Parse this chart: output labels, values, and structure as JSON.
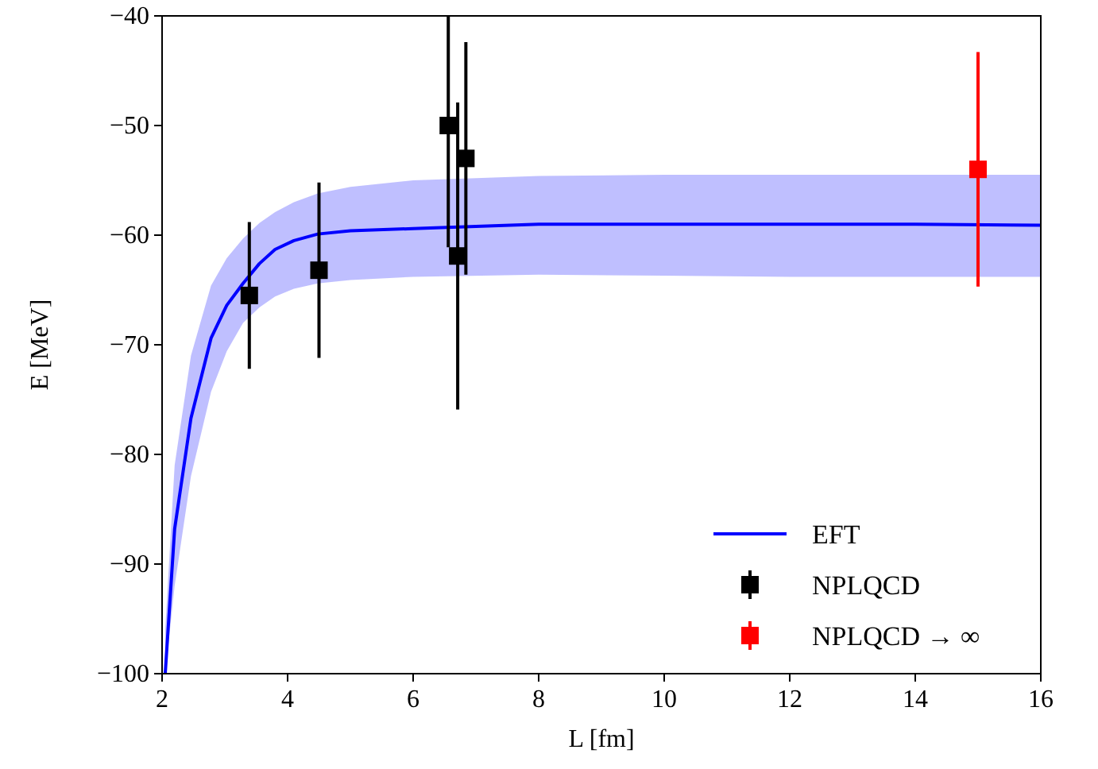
{
  "chart_data": {
    "type": "line",
    "xlabel": "L [fm]",
    "ylabel": "E [MeV]",
    "xlim": [
      2,
      16
    ],
    "ylim": [
      -100,
      -40
    ],
    "xticks": [
      2,
      4,
      6,
      8,
      10,
      12,
      14,
      16
    ],
    "yticks": [
      -100,
      -90,
      -80,
      -70,
      -60,
      -50,
      -40
    ],
    "grid": false,
    "legend": "bottom right",
    "series": [
      {
        "name": "EFT",
        "color": "#0000ff",
        "line_style": "solid",
        "marker": "none",
        "x": [
          2.05,
          2.2,
          2.46,
          2.78,
          3.03,
          3.29,
          3.55,
          3.8,
          4.1,
          4.48,
          5,
          6,
          8,
          10,
          12,
          14,
          16
        ],
        "values": [
          -100,
          -86.8,
          -76.7,
          -69.4,
          -66.4,
          -64.4,
          -62.6,
          -61.3,
          -60.5,
          -59.9,
          -59.6,
          -59.4,
          -59,
          -59,
          -59,
          -59,
          -59.1
        ],
        "upper": [
          -96,
          -81,
          -71,
          -64.6,
          -62.1,
          -60.3,
          -58.9,
          -57.9,
          -57,
          -56.2,
          -55.6,
          -55,
          -54.6,
          -54.5,
          -54.5,
          -54.5,
          -54.5
        ],
        "lower": [
          -100,
          -92,
          -82,
          -74.3,
          -70.6,
          -68,
          -66.6,
          -65.6,
          -64.9,
          -64.4,
          -64.1,
          -63.8,
          -63.6,
          -63.7,
          -63.8,
          -63.8,
          -63.8
        ]
      },
      {
        "name": "NPLQCD",
        "type": "scatter",
        "color": "#000000",
        "marker": "square",
        "x": [
          3.39,
          4.5,
          6.56,
          6.71,
          6.84
        ],
        "values": [
          -65.5,
          -63.2,
          -50,
          -61.9,
          -53
        ],
        "errors": [
          6.7,
          8,
          [
            -61.1,
            -40
          ],
          14,
          10.6
        ]
      },
      {
        "name": "NPLQCD → ∞",
        "type": "scatter",
        "color": "#ff0000",
        "marker": "square",
        "x": [
          15
        ],
        "values": [
          -54
        ],
        "errors": [
          10.7
        ]
      }
    ]
  }
}
